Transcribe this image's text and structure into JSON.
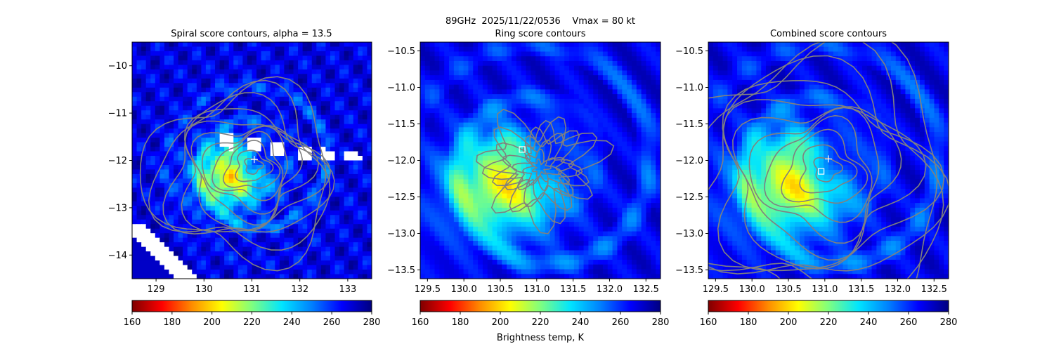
{
  "suptitle": {
    "line1": "89GHz  2025/11/22/0536    Vmax = 80 kt",
    "line2": "Ring score contours"
  },
  "colorbar": {
    "label": "Brightness temp, K",
    "ticks": [
      "160",
      "180",
      "200",
      "220",
      "240",
      "260",
      "280"
    ],
    "range": [
      160,
      280
    ],
    "colormap": "jet_r",
    "colors": [
      "#7f0000",
      "#ff0000",
      "#ff8c00",
      "#ffff00",
      "#7fff7f",
      "#00e5ff",
      "#0080ff",
      "#0000ff",
      "#00007f"
    ]
  },
  "contour_color": "#808080",
  "marker_color": "#ffffff",
  "chart_data": [
    {
      "type": "heatmap",
      "title": "Spiral score contours, alpha = 13.5",
      "xlim": [
        128.5,
        133.5
      ],
      "ylim": [
        -14.5,
        -9.5
      ],
      "xticks": [
        "129",
        "130",
        "131",
        "132",
        "133"
      ],
      "yticks": [
        "−10",
        "−11",
        "−12",
        "−13",
        "−14"
      ],
      "center": [
        131.05,
        -12.1
      ],
      "markers": [
        {
          "shape": "plus",
          "x": 131.05,
          "y": -11.98
        }
      ]
    },
    {
      "type": "heatmap",
      "title": "",
      "xlim": [
        129.4,
        132.7
      ],
      "ylim": [
        -13.62,
        -10.38
      ],
      "xticks": [
        "129.5",
        "130.0",
        "130.5",
        "131.0",
        "131.5",
        "132.0",
        "132.5"
      ],
      "yticks": [
        "−10.5",
        "−11.0",
        "−11.5",
        "−12.0",
        "−12.5",
        "−13.0",
        "−13.5"
      ],
      "center": [
        131.05,
        -12.1
      ],
      "markers": [
        {
          "shape": "square",
          "x": 130.8,
          "y": -11.85
        }
      ]
    },
    {
      "type": "heatmap",
      "title": "Combined score contours",
      "xlim": [
        129.4,
        132.7
      ],
      "ylim": [
        -13.62,
        -10.38
      ],
      "xticks": [
        "129.5",
        "130.0",
        "130.5",
        "131.0",
        "131.5",
        "132.0",
        "132.5"
      ],
      "yticks": [
        "−10.5",
        "−11.0",
        "−11.5",
        "−12.0",
        "−12.5",
        "−13.0",
        "−13.5"
      ],
      "center": [
        131.05,
        -12.1
      ],
      "markers": [
        {
          "shape": "plus",
          "x": 131.05,
          "y": -11.98
        },
        {
          "shape": "square",
          "x": 130.95,
          "y": -12.15
        }
      ]
    }
  ]
}
